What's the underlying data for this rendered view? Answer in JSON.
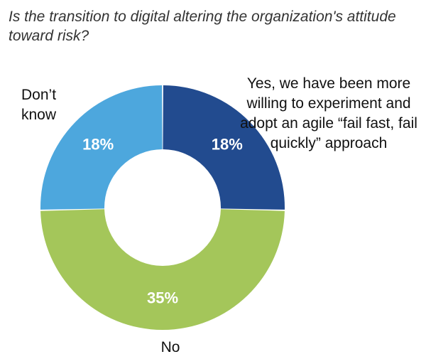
{
  "chart_data": {
    "type": "pie",
    "title": "Is the transition to digital altering the organization's attitude toward risk?",
    "categories": [
      "Yes, we have been more willing to experiment and adopt an agile “fail fast, fail quickly” approach",
      "No",
      "Don’t know"
    ],
    "values": [
      18,
      35,
      18
    ],
    "value_labels": [
      "18%",
      "35%",
      "18%"
    ],
    "colors": [
      "#224b8f",
      "#a4c65a",
      "#4da7dd"
    ],
    "donut": true
  },
  "labels": {
    "yes": "Yes, we have been more willing to experiment and adopt an agile “fail fast, fail quickly” approach",
    "no": "No",
    "dont_know": "Don’t know"
  }
}
